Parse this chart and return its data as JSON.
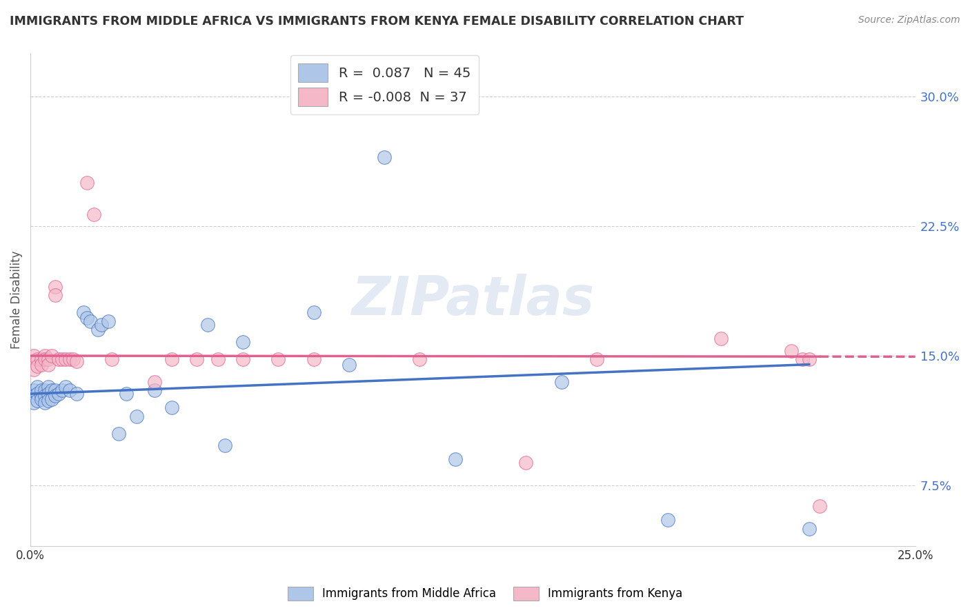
{
  "title": "IMMIGRANTS FROM MIDDLE AFRICA VS IMMIGRANTS FROM KENYA FEMALE DISABILITY CORRELATION CHART",
  "source": "Source: ZipAtlas.com",
  "ylabel": "Female Disability",
  "legend_label1": "Immigrants from Middle Africa",
  "legend_label2": "Immigrants from Kenya",
  "R1": 0.087,
  "N1": 45,
  "R2": -0.008,
  "N2": 37,
  "color1": "#aec6e8",
  "color2": "#f4b8c8",
  "line_color1": "#4472c4",
  "line_color2": "#e06090",
  "xmin": 0.0,
  "xmax": 0.25,
  "ymin": 0.04,
  "ymax": 0.325,
  "yticks": [
    0.075,
    0.15,
    0.225,
    0.3
  ],
  "ytick_labels": [
    "7.5%",
    "15.0%",
    "22.5%",
    "30.0%"
  ],
  "xticks": [
    0.0,
    0.05,
    0.1,
    0.15,
    0.2,
    0.25
  ],
  "xtick_labels": [
    "0.0%",
    "",
    "",
    "",
    "",
    "25.0%"
  ],
  "watermark": "ZIPatlas",
  "blue_x": [
    0.001,
    0.001,
    0.001,
    0.002,
    0.002,
    0.002,
    0.003,
    0.003,
    0.003,
    0.004,
    0.004,
    0.004,
    0.005,
    0.005,
    0.005,
    0.006,
    0.006,
    0.007,
    0.007,
    0.008,
    0.009,
    0.01,
    0.011,
    0.013,
    0.015,
    0.016,
    0.017,
    0.019,
    0.02,
    0.022,
    0.025,
    0.027,
    0.03,
    0.035,
    0.04,
    0.05,
    0.055,
    0.06,
    0.08,
    0.09,
    0.1,
    0.12,
    0.15,
    0.18,
    0.22
  ],
  "blue_y": [
    0.13,
    0.127,
    0.123,
    0.132,
    0.128,
    0.124,
    0.127,
    0.13,
    0.125,
    0.13,
    0.127,
    0.123,
    0.132,
    0.128,
    0.124,
    0.13,
    0.125,
    0.13,
    0.127,
    0.128,
    0.13,
    0.132,
    0.13,
    0.128,
    0.175,
    0.172,
    0.17,
    0.165,
    0.168,
    0.17,
    0.105,
    0.128,
    0.115,
    0.13,
    0.12,
    0.168,
    0.098,
    0.158,
    0.175,
    0.145,
    0.265,
    0.09,
    0.135,
    0.055,
    0.05
  ],
  "pink_x": [
    0.001,
    0.001,
    0.002,
    0.002,
    0.003,
    0.003,
    0.004,
    0.004,
    0.005,
    0.005,
    0.006,
    0.007,
    0.007,
    0.008,
    0.009,
    0.01,
    0.011,
    0.012,
    0.013,
    0.016,
    0.018,
    0.023,
    0.035,
    0.04,
    0.047,
    0.053,
    0.06,
    0.07,
    0.08,
    0.11,
    0.14,
    0.16,
    0.195,
    0.215,
    0.218,
    0.22,
    0.223
  ],
  "pink_y": [
    0.15,
    0.142,
    0.148,
    0.144,
    0.148,
    0.145,
    0.15,
    0.148,
    0.148,
    0.145,
    0.15,
    0.19,
    0.185,
    0.148,
    0.148,
    0.148,
    0.148,
    0.148,
    0.147,
    0.25,
    0.232,
    0.148,
    0.135,
    0.148,
    0.148,
    0.148,
    0.148,
    0.148,
    0.148,
    0.148,
    0.088,
    0.148,
    0.16,
    0.153,
    0.148,
    0.148,
    0.063
  ]
}
